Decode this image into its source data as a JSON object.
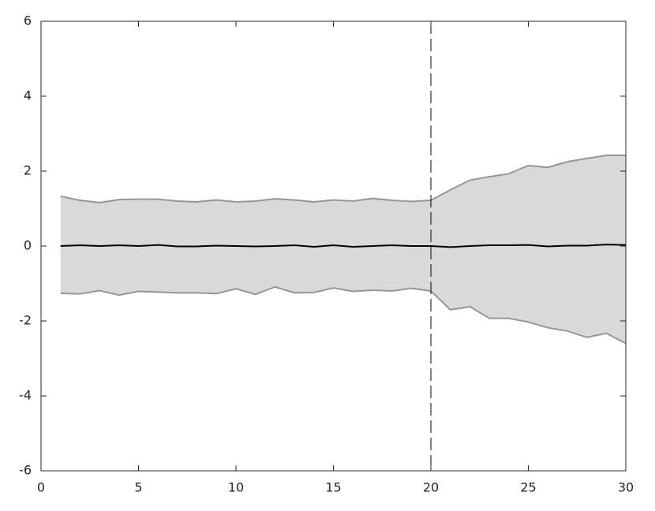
{
  "chart_data": {
    "type": "band",
    "x": [
      1,
      2,
      3,
      4,
      5,
      6,
      7,
      8,
      9,
      10,
      11,
      12,
      13,
      14,
      15,
      16,
      17,
      18,
      19,
      20,
      21,
      22,
      23,
      24,
      25,
      26,
      27,
      28,
      29,
      30
    ],
    "band": {
      "fill": "#d9d9d9",
      "edge_color": "#969696",
      "upper": [
        1.33,
        1.22,
        1.16,
        1.24,
        1.25,
        1.25,
        1.2,
        1.18,
        1.23,
        1.18,
        1.2,
        1.26,
        1.23,
        1.18,
        1.23,
        1.2,
        1.27,
        1.22,
        1.19,
        1.22,
        1.5,
        1.76,
        1.85,
        1.93,
        2.15,
        2.1,
        2.25,
        2.34,
        2.42,
        2.42
      ],
      "lower": [
        -1.26,
        -1.28,
        -1.19,
        -1.31,
        -1.21,
        -1.23,
        -1.25,
        -1.25,
        -1.27,
        -1.14,
        -1.29,
        -1.09,
        -1.25,
        -1.24,
        -1.12,
        -1.21,
        -1.18,
        -1.2,
        -1.13,
        -1.2,
        -1.7,
        -1.62,
        -1.93,
        -1.93,
        -2.03,
        -2.18,
        -2.27,
        -2.44,
        -2.33,
        -2.6
      ]
    },
    "series": [
      {
        "color": "#000000",
        "values": [
          0,
          0.02,
          0,
          0.02,
          0,
          0.03,
          -0.01,
          -0.01,
          0.01,
          0,
          -0.01,
          0,
          0.02,
          -0.02,
          0.02,
          -0.02,
          0,
          0.02,
          0,
          0,
          -0.03,
          0,
          0.02,
          0.02,
          0.03,
          -0.01,
          0.01,
          0.01,
          0.04,
          0.03
        ]
      }
    ],
    "vline": 20,
    "xlim": [
      0,
      30
    ],
    "xticks": [
      0,
      5,
      10,
      15,
      20,
      25,
      30
    ],
    "ylim": [
      -6,
      6
    ],
    "yticks": [
      -6,
      -4,
      -2,
      0,
      2,
      4,
      6
    ],
    "grid": false
  }
}
